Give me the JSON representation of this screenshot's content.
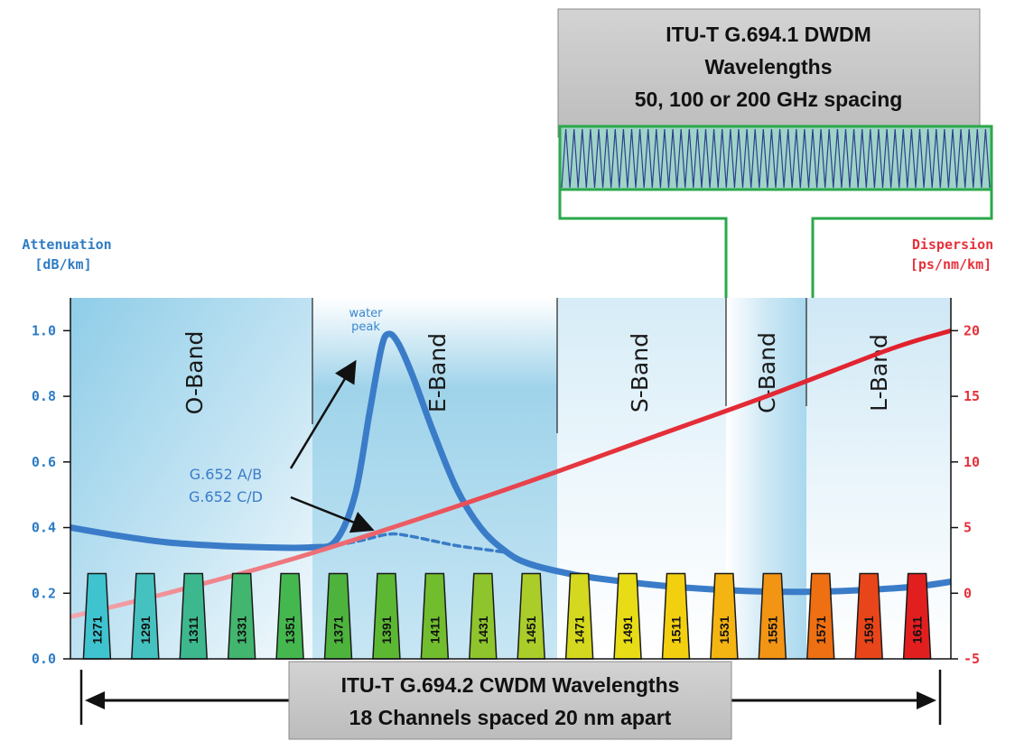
{
  "dwdm_box": {
    "line1": "ITU-T G.694.1 DWDM",
    "line2": "Wavelengths",
    "line3": "50, 100 or 200 GHz spacing"
  },
  "cwdm_box": {
    "line1": "ITU-T G.694.2 CWDM Wavelengths",
    "line2": "18 Channels spaced 20 nm apart"
  },
  "chart_data": {
    "type": "line",
    "y_left": {
      "label_line1": "Attenuation",
      "label_line2": "[dB/km]",
      "ticks": [
        "0.0",
        "0.2",
        "0.4",
        "0.6",
        "0.8",
        "1.0"
      ],
      "range": [
        0,
        1.1
      ]
    },
    "y_right": {
      "label_line1": "Dispersion",
      "label_line2": "[ps/nm/km]",
      "ticks": [
        "-5",
        "0",
        "5",
        "10",
        "15",
        "20"
      ],
      "range": [
        -5,
        22.5
      ]
    },
    "bands": [
      "O-Band",
      "E-Band",
      "S-Band",
      "C-Band",
      "L-Band"
    ],
    "annotations": {
      "water_peak_line1": "water",
      "water_peak_line2": "peak",
      "fiber_ab": "G.652 A/B",
      "fiber_cd": "G.652 C/D"
    },
    "channels": [
      "1271",
      "1291",
      "1311",
      "1331",
      "1351",
      "1371",
      "1391",
      "1411",
      "1431",
      "1451",
      "1471",
      "1491",
      "1511",
      "1531",
      "1551",
      "1571",
      "1591",
      "1611"
    ],
    "channel_colors": [
      "#3fc3cf",
      "#45c2c0",
      "#3db88e",
      "#42b66e",
      "#44b84f",
      "#4db33c",
      "#5cb832",
      "#72bd2e",
      "#8ec52d",
      "#aacd2a",
      "#d4d81e",
      "#e8dc16",
      "#f2d010",
      "#f4b412",
      "#f29414",
      "#ee7012",
      "#e8461a",
      "#e21f1f"
    ],
    "series": [
      {
        "name": "G.652 A/B",
        "axis": "left",
        "color": "#3a7cc8",
        "points": [
          [
            1260,
            0.4
          ],
          [
            1280,
            0.375
          ],
          [
            1300,
            0.355
          ],
          [
            1320,
            0.345
          ],
          [
            1340,
            0.34
          ],
          [
            1360,
            0.34
          ],
          [
            1370,
            0.36
          ],
          [
            1378,
            0.5
          ],
          [
            1384,
            0.75
          ],
          [
            1389,
            0.95
          ],
          [
            1392,
            0.99
          ],
          [
            1396,
            0.96
          ],
          [
            1402,
            0.86
          ],
          [
            1410,
            0.7
          ],
          [
            1420,
            0.52
          ],
          [
            1430,
            0.4
          ],
          [
            1440,
            0.33
          ],
          [
            1450,
            0.29
          ],
          [
            1470,
            0.255
          ],
          [
            1490,
            0.235
          ],
          [
            1510,
            0.22
          ],
          [
            1530,
            0.21
          ],
          [
            1550,
            0.205
          ],
          [
            1570,
            0.205
          ],
          [
            1590,
            0.21
          ],
          [
            1610,
            0.22
          ],
          [
            1625,
            0.235
          ]
        ]
      },
      {
        "name": "G.652 C/D",
        "axis": "left",
        "color": "#3a7cc8",
        "dashed": true,
        "points": [
          [
            1366,
            0.34
          ],
          [
            1380,
            0.36
          ],
          [
            1392,
            0.38
          ],
          [
            1400,
            0.375
          ],
          [
            1410,
            0.36
          ],
          [
            1420,
            0.345
          ],
          [
            1430,
            0.335
          ],
          [
            1440,
            0.325
          ]
        ]
      },
      {
        "name": "Dispersion",
        "axis": "right",
        "color": "#e5323c",
        "points": [
          [
            1260,
            -1.8
          ],
          [
            1300,
            0.0
          ],
          [
            1350,
            2.5
          ],
          [
            1400,
            5.4
          ],
          [
            1450,
            8.5
          ],
          [
            1500,
            11.8
          ],
          [
            1550,
            15.1
          ],
          [
            1600,
            18.6
          ],
          [
            1625,
            20.0
          ]
        ]
      }
    ]
  }
}
